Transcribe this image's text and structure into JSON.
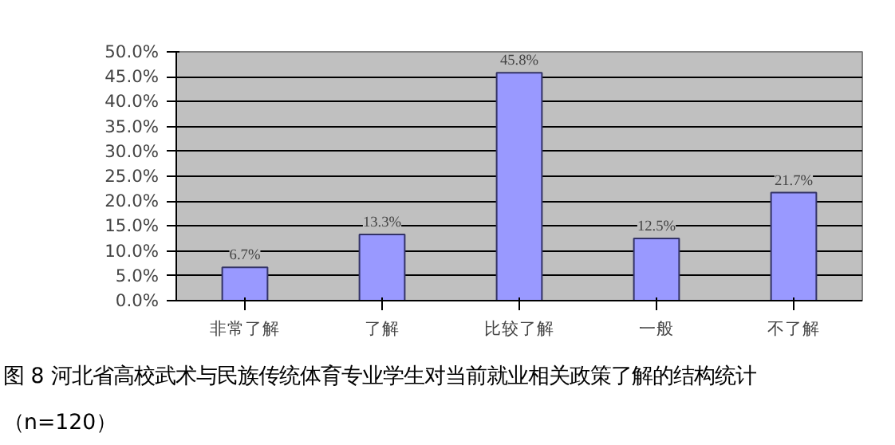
{
  "chart_data": {
    "type": "bar",
    "categories": [
      "非常了解",
      "了解",
      "比较了解",
      "一般",
      "不了解"
    ],
    "values": [
      6.7,
      13.3,
      45.8,
      12.5,
      21.7
    ],
    "color": "#9999ff",
    "data_labels": true,
    "value_labels": [
      "6.7%",
      "13.3%",
      "45.8%",
      "12.5%",
      "21.7%"
    ],
    "ylim": [
      0,
      50
    ],
    "yticks": [
      {
        "value": 0,
        "label": "0.0%"
      },
      {
        "value": 5,
        "label": "5.0%"
      },
      {
        "value": 10,
        "label": "10.0%"
      },
      {
        "value": 15,
        "label": "15.0%"
      },
      {
        "value": 20,
        "label": "20.0%"
      },
      {
        "value": 25,
        "label": "25.0%"
      },
      {
        "value": 30,
        "label": "30.0%"
      },
      {
        "value": 35,
        "label": "35.0%"
      },
      {
        "value": 40,
        "label": "40.0%"
      },
      {
        "value": 45,
        "label": "45.0%"
      },
      {
        "value": 50,
        "label": "50.0%"
      }
    ],
    "grid": "y",
    "annotations": [
      "图 8  河北省高校武术与民族传统体育专业学生对当前就业相关政策了解的结构统计",
      "（n=120）"
    ]
  }
}
